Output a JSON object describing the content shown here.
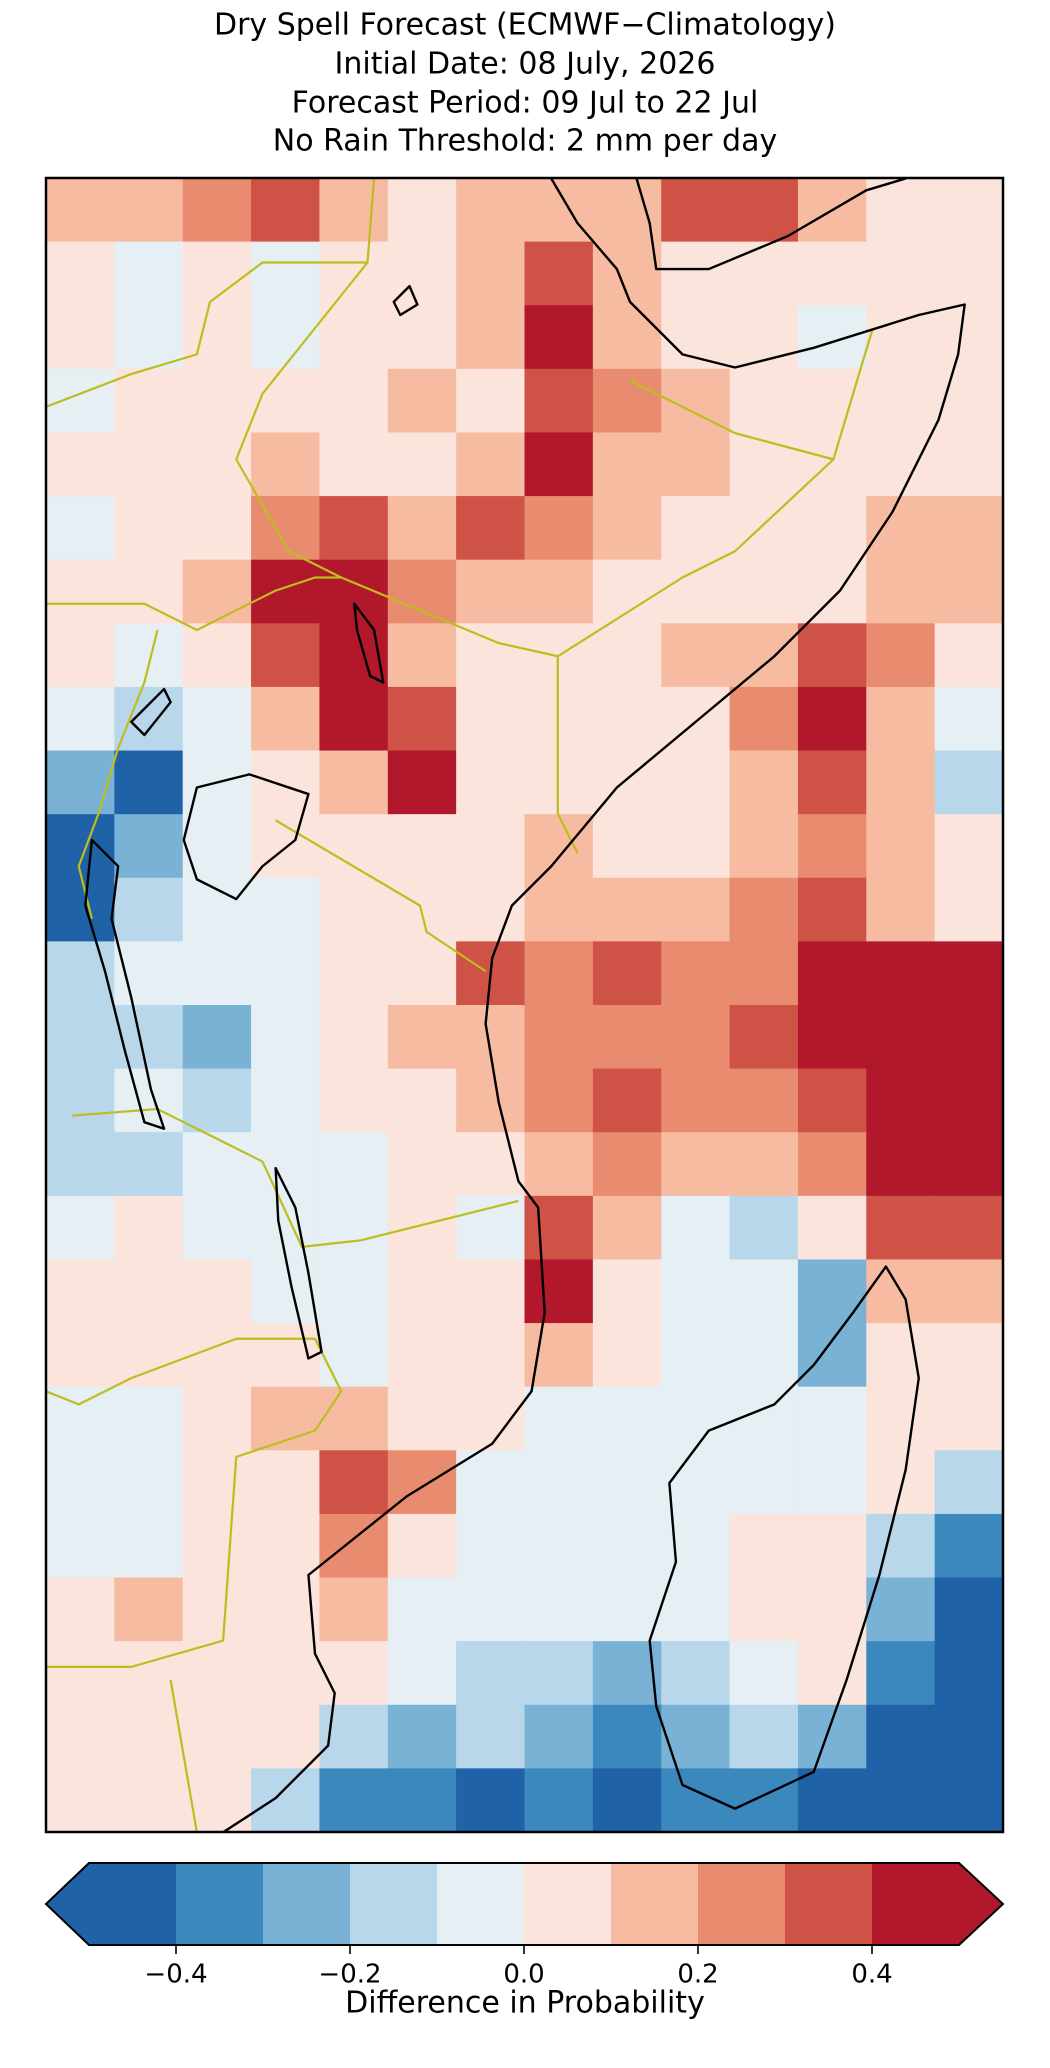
{
  "chart_data": {
    "type": "heatmap",
    "title": [
      "Dry Spell Forecast (ECMWF−Climatology)",
      "Initial Date: 08 July, 2026",
      "Forecast Period: 09 Jul to 22 Jul",
      "No Rain Threshold: 2 mm per day"
    ],
    "colorbar_label": "Difference in Probability",
    "clim": [
      -0.5,
      0.5
    ],
    "extend": "both",
    "colors": [
      "#1f62a7",
      "#3b88bf",
      "#7ab2d6",
      "#b8d7ea",
      "#e5eff4",
      "#fae4dc",
      "#f7bba1",
      "#e98b6f",
      "#cf5246",
      "#b1182b"
    ],
    "cticks": [
      {
        "value": -0.4,
        "label": "−0.4"
      },
      {
        "value": -0.2,
        "label": "−0.2"
      },
      {
        "value": 0,
        "label": "0.0"
      },
      0.2,
      0.4
    ],
    "values": [
      [
        0.15,
        0.1,
        0.25,
        0.3,
        0.15,
        0.05,
        0.15,
        0.15,
        0.1,
        0.3,
        0.3,
        0.15,
        0.05,
        0.05
      ],
      [
        0.05,
        -0.05,
        0.05,
        -0.05,
        0.05,
        0.05,
        0.15,
        0.35,
        0.15,
        0.05,
        0.05,
        0.05,
        0.05,
        0.05
      ],
      [
        0.05,
        -0.05,
        0.05,
        -0.05,
        0.05,
        0.05,
        0.15,
        0.45,
        0.15,
        0.05,
        0.05,
        -0.05,
        0.05,
        0.05
      ],
      [
        -0.05,
        0.05,
        0.05,
        0.05,
        0.05,
        0.15,
        0.05,
        0.3,
        0.25,
        0.15,
        0.05,
        0.05,
        0.05,
        0.05
      ],
      [
        0.05,
        0.05,
        0.05,
        0.15,
        0.05,
        0.05,
        0.15,
        0.45,
        0.15,
        0.15,
        0.05,
        0.05,
        0.05,
        0.05
      ],
      [
        -0.05,
        0.05,
        0.05,
        0.25,
        0.35,
        0.15,
        0.3,
        0.25,
        0.15,
        0.05,
        0.05,
        0.05,
        0.15,
        0.15
      ],
      [
        0.05,
        0.05,
        0.15,
        0.45,
        0.45,
        0.25,
        0.15,
        0.15,
        0.05,
        0.05,
        0.05,
        0.05,
        0.15,
        0.15
      ],
      [
        0.05,
        -0.05,
        0.05,
        0.35,
        0.45,
        0.15,
        0.05,
        0.05,
        0.05,
        0.15,
        0.15,
        0.35,
        0.25,
        0.05
      ],
      [
        -0.05,
        -0.15,
        -0.05,
        0.15,
        0.45,
        0.35,
        0.05,
        0.05,
        0.05,
        0.05,
        0.25,
        0.45,
        0.15,
        -0.05
      ],
      [
        -0.25,
        -0.45,
        -0.05,
        0.05,
        0.15,
        0.45,
        0.05,
        0.05,
        0.05,
        0.05,
        0.15,
        0.35,
        0.15,
        -0.15
      ],
      [
        -0.45,
        -0.25,
        -0.05,
        0.05,
        0.05,
        0.05,
        0.05,
        0.15,
        0.05,
        0.05,
        0.15,
        0.25,
        0.15,
        0.05
      ],
      [
        -0.45,
        -0.15,
        -0.05,
        -0.05,
        0.05,
        0.05,
        0.05,
        0.15,
        0.15,
        0.15,
        0.25,
        0.35,
        0.15,
        0.05
      ],
      [
        -0.15,
        -0.05,
        -0.05,
        -0.05,
        0.05,
        0.05,
        0.35,
        0.25,
        0.35,
        0.25,
        0.25,
        0.45,
        0.45,
        0.45
      ],
      [
        -0.15,
        -0.15,
        -0.25,
        -0.05,
        0.05,
        0.15,
        0.15,
        0.25,
        0.25,
        0.25,
        0.35,
        0.45,
        0.45,
        0.45
      ],
      [
        -0.15,
        -0.05,
        -0.15,
        -0.05,
        0.05,
        0.05,
        0.15,
        0.25,
        0.35,
        0.25,
        0.25,
        0.35,
        0.45,
        0.45
      ],
      [
        -0.15,
        -0.15,
        -0.05,
        -0.05,
        -0.05,
        0.05,
        0.05,
        0.15,
        0.25,
        0.15,
        0.15,
        0.25,
        0.45,
        0.45
      ],
      [
        -0.05,
        0.05,
        -0.05,
        -0.05,
        -0.05,
        0.05,
        -0.05,
        0.35,
        0.15,
        -0.05,
        -0.15,
        0.05,
        0.35,
        0.35
      ],
      [
        0.05,
        0.05,
        0.05,
        -0.05,
        -0.05,
        0.05,
        0.05,
        0.45,
        0.05,
        -0.05,
        -0.05,
        -0.25,
        0.15,
        0.15
      ],
      [
        0.05,
        0.05,
        0.05,
        0.05,
        -0.05,
        0.05,
        0.05,
        0.15,
        0.05,
        -0.05,
        -0.05,
        -0.25,
        0.05,
        0.05
      ],
      [
        -0.05,
        -0.05,
        0.05,
        0.15,
        0.15,
        0.05,
        0.05,
        -0.05,
        -0.05,
        -0.05,
        -0.05,
        -0.05,
        0.05,
        0.05
      ],
      [
        -0.05,
        -0.05,
        0.05,
        0.05,
        0.35,
        0.25,
        -0.05,
        -0.05,
        -0.05,
        -0.05,
        -0.05,
        -0.05,
        0.05,
        -0.15
      ],
      [
        -0.05,
        -0.05,
        0.05,
        0.05,
        0.25,
        0.05,
        -0.05,
        -0.05,
        -0.05,
        -0.05,
        0.05,
        0.05,
        -0.15,
        -0.35
      ],
      [
        0.05,
        0.15,
        0.05,
        0.05,
        0.15,
        -0.05,
        -0.05,
        -0.05,
        -0.05,
        -0.05,
        0.05,
        0.05,
        -0.25,
        -0.45
      ],
      [
        0.05,
        0.05,
        0.05,
        0.05,
        0.05,
        -0.05,
        -0.15,
        -0.15,
        -0.25,
        -0.15,
        -0.05,
        0.05,
        -0.35,
        -0.45
      ],
      [
        0.05,
        0.05,
        0.05,
        0.05,
        -0.15,
        -0.25,
        -0.15,
        -0.25,
        -0.35,
        -0.25,
        -0.15,
        -0.25,
        -0.45,
        -0.45
      ],
      [
        0.05,
        0.05,
        0.05,
        -0.15,
        -0.35,
        -0.35,
        -0.45,
        -0.35,
        -0.45,
        -0.35,
        -0.35,
        -0.45,
        -0.45,
        -0.45
      ]
    ]
  }
}
